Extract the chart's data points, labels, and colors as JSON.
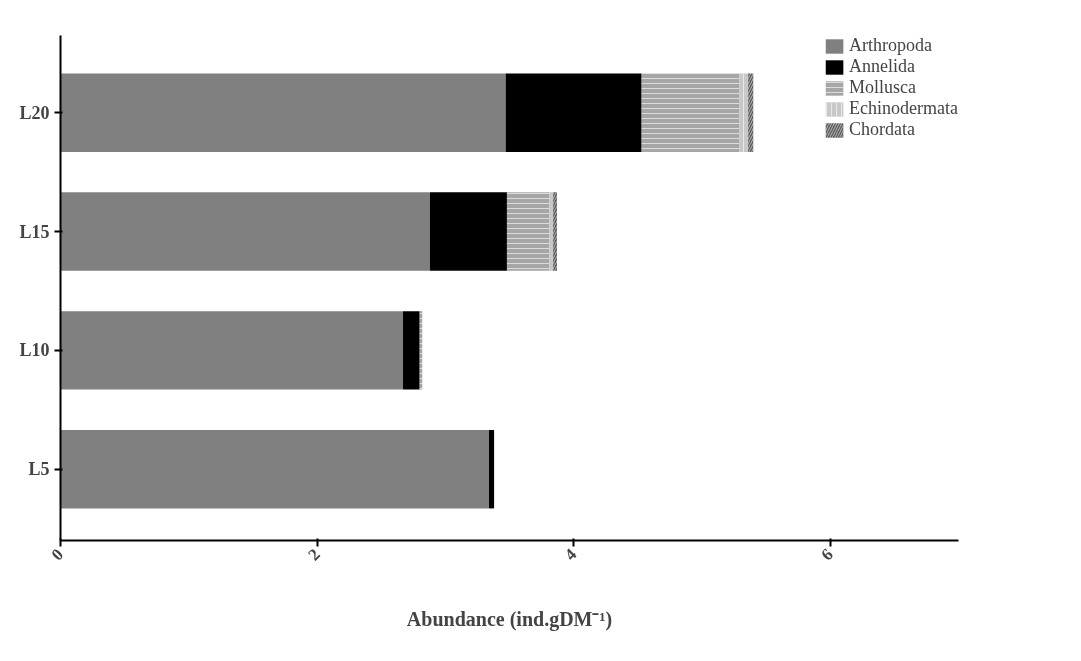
{
  "chart_data": {
    "type": "bar",
    "orientation": "horizontal",
    "stacked": true,
    "categories": [
      "L20",
      "L15",
      "L10",
      "L5"
    ],
    "series": [
      {
        "name": "Arthropoda",
        "color": "#808080",
        "values": [
          3.47,
          2.88,
          2.67,
          3.34
        ]
      },
      {
        "name": "Annelida",
        "color": "#000000",
        "values": [
          1.06,
          0.6,
          0.13,
          0.04
        ]
      },
      {
        "name": "Mollusca",
        "color": "#a6a6a6",
        "values": [
          0.76,
          0.33,
          0.02,
          null
        ]
      },
      {
        "name": "Echinodermata",
        "color": "#c8c8c8",
        "values": [
          0.07,
          0.03,
          null,
          null
        ]
      },
      {
        "name": "Chordata",
        "color": "#595959",
        "values": [
          0.04,
          0.03,
          null,
          null
        ]
      }
    ],
    "xlabel": "Abundance (ind.gDM⁻¹)",
    "xlim": [
      0,
      7
    ],
    "xticks": [
      0,
      2,
      4,
      6
    ],
    "grid": false,
    "legend": "top right"
  }
}
